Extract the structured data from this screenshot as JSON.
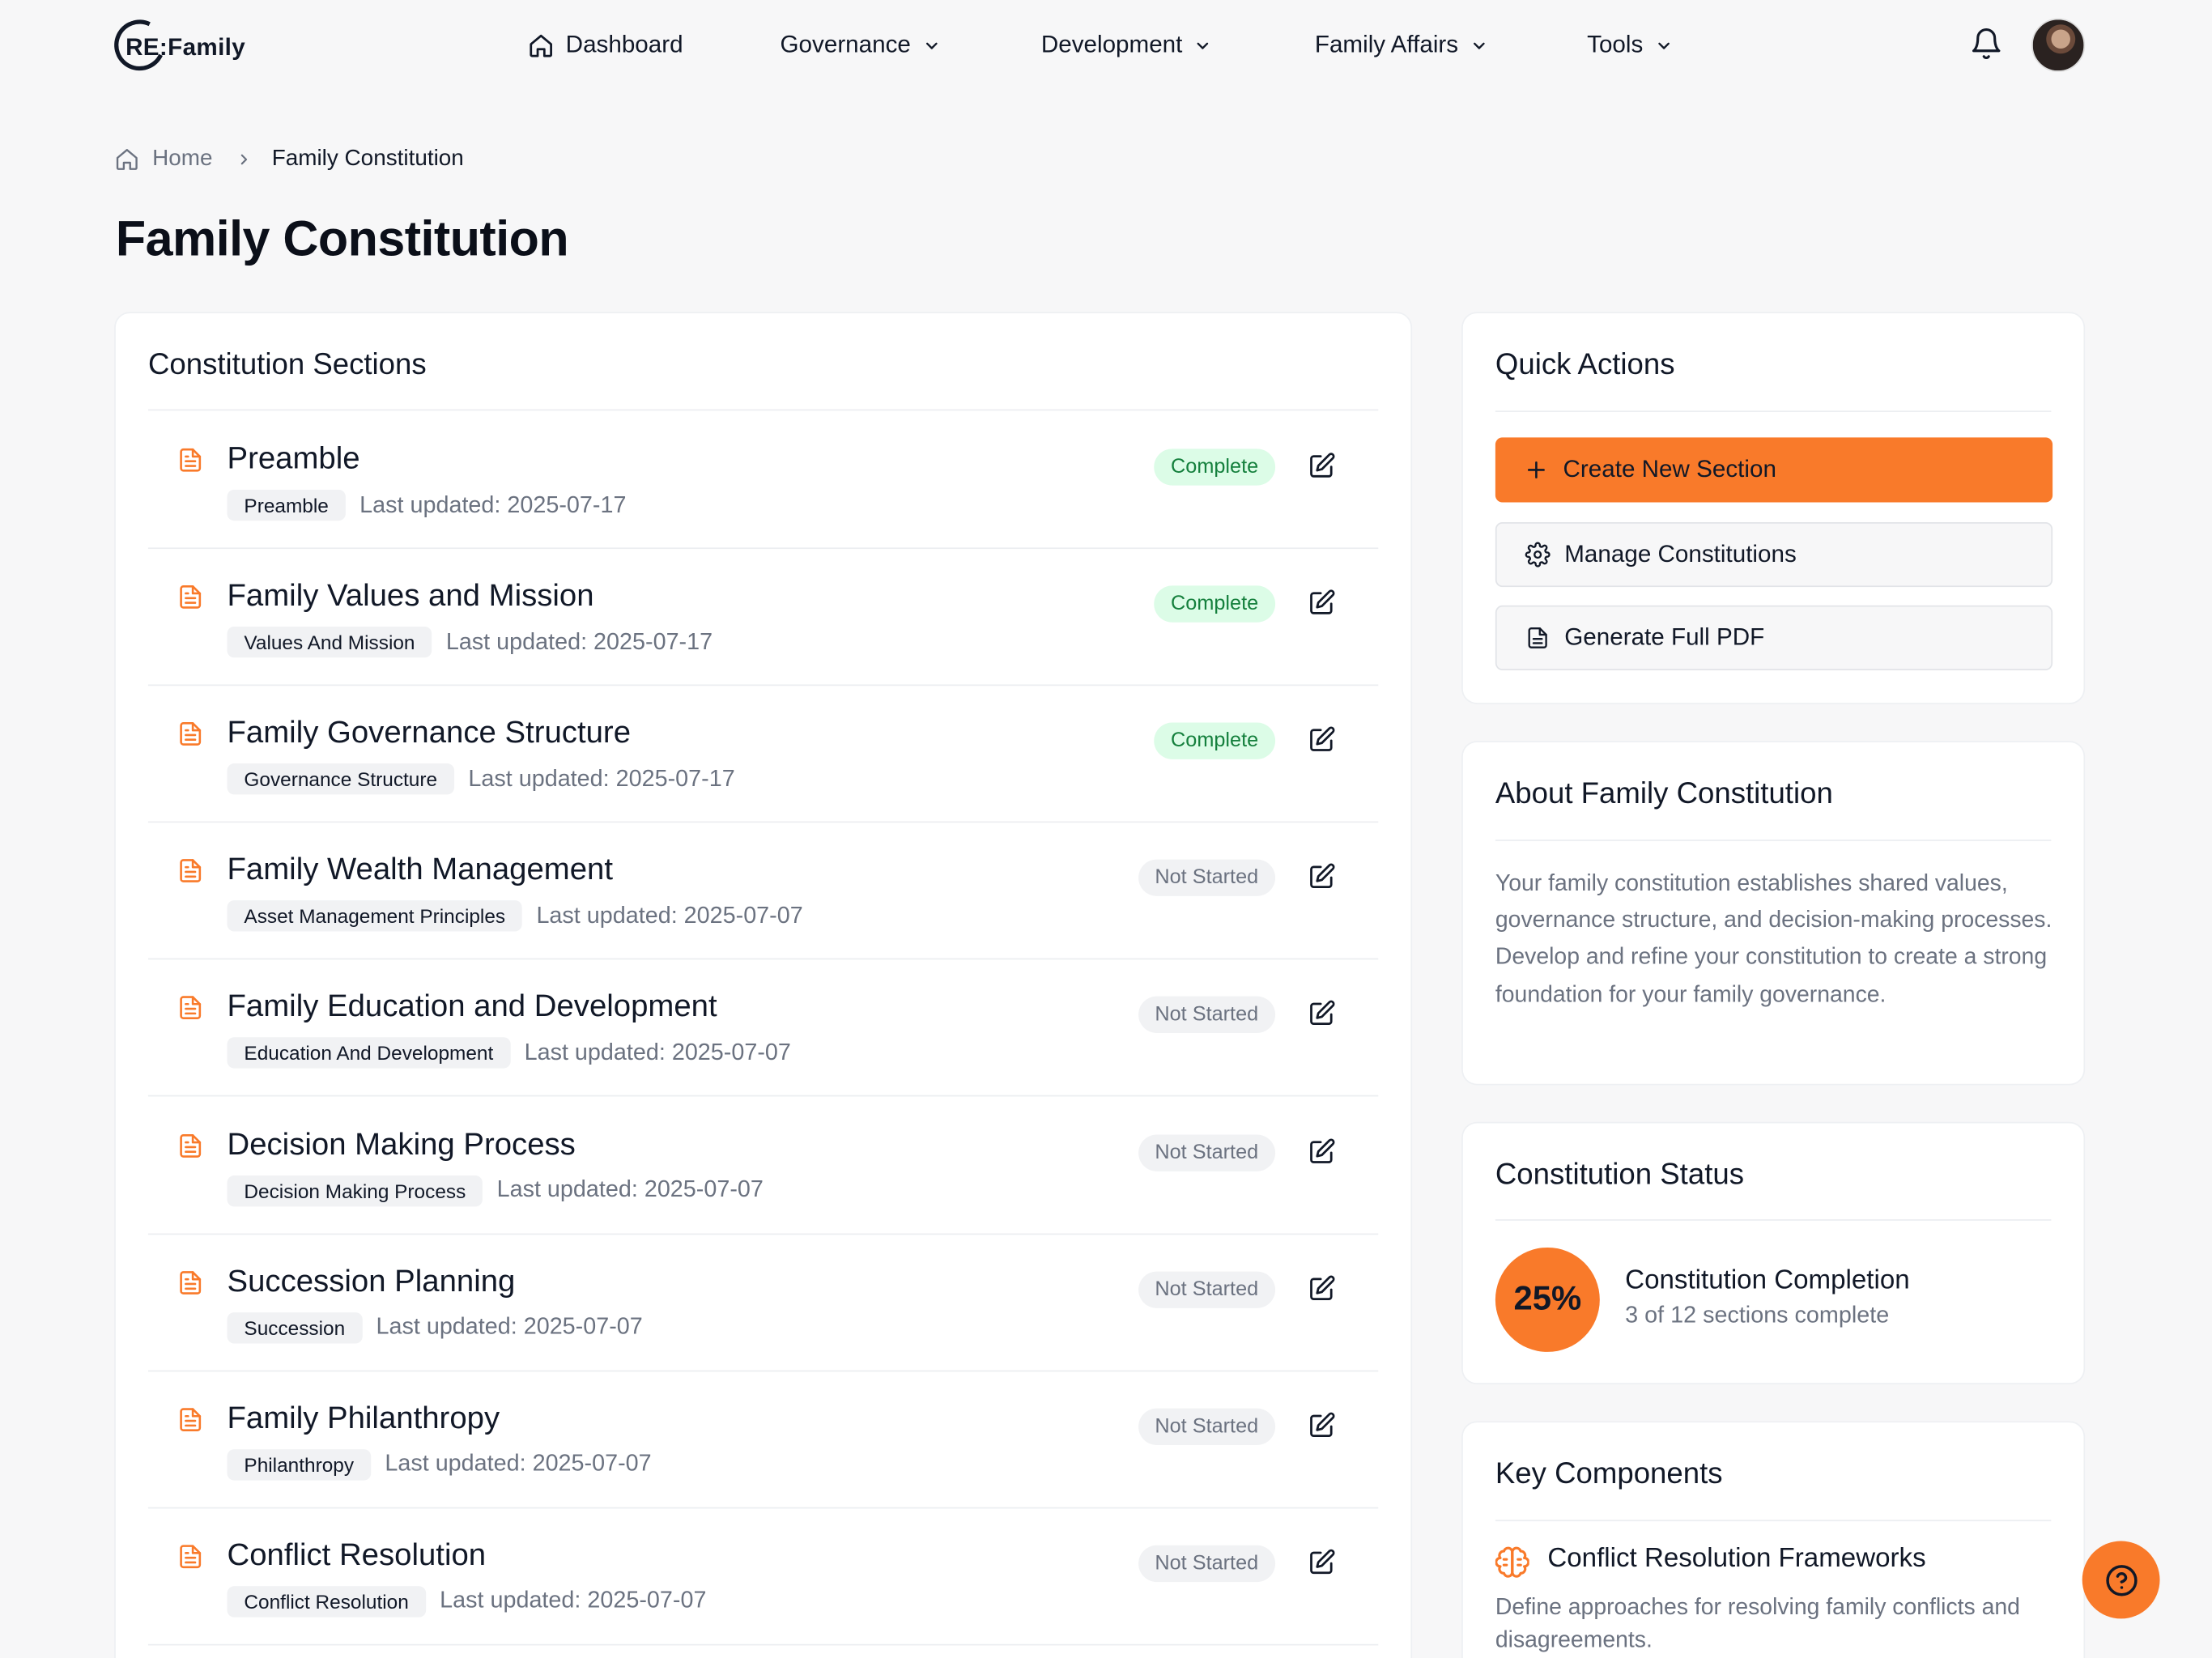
{
  "colors": {
    "accent": "#f97a2a",
    "complete_bg": "#dcfce7",
    "complete_text": "#15803d",
    "muted": "#6b7280"
  },
  "nav": {
    "logo_text": "RE:Family",
    "items": [
      {
        "label": "Dashboard",
        "icon": "home-icon"
      },
      {
        "label": "Governance",
        "icon": "chevron-down-icon"
      },
      {
        "label": "Development",
        "icon": "chevron-down-icon"
      },
      {
        "label": "Family Affairs",
        "icon": "chevron-down-icon"
      },
      {
        "label": "Tools",
        "icon": "chevron-down-icon"
      }
    ]
  },
  "breadcrumb": {
    "home": "Home",
    "current": "Family Constitution"
  },
  "page_title": "Family Constitution",
  "sections_card": {
    "title": "Constitution Sections",
    "sections": [
      {
        "title": "Preamble",
        "tag": "Preamble",
        "updated": "Last updated: 2025-07-17",
        "status": "Complete"
      },
      {
        "title": "Family Values and Mission",
        "tag": "Values And Mission",
        "updated": "Last updated: 2025-07-17",
        "status": "Complete"
      },
      {
        "title": "Family Governance Structure",
        "tag": "Governance Structure",
        "updated": "Last updated: 2025-07-17",
        "status": "Complete"
      },
      {
        "title": "Family Wealth Management",
        "tag": "Asset Management Principles",
        "updated": "Last updated: 2025-07-07",
        "status": "Not Started"
      },
      {
        "title": "Family Education and Development",
        "tag": "Education And Development",
        "updated": "Last updated: 2025-07-07",
        "status": "Not Started"
      },
      {
        "title": "Decision Making Process",
        "tag": "Decision Making Process",
        "updated": "Last updated: 2025-07-07",
        "status": "Not Started"
      },
      {
        "title": "Succession Planning",
        "tag": "Succession",
        "updated": "Last updated: 2025-07-07",
        "status": "Not Started"
      },
      {
        "title": "Family Philanthropy",
        "tag": "Philanthropy",
        "updated": "Last updated: 2025-07-07",
        "status": "Not Started"
      },
      {
        "title": "Conflict Resolution",
        "tag": "Conflict Resolution",
        "updated": "Last updated: 2025-07-07",
        "status": "Not Started"
      }
    ]
  },
  "quick_actions": {
    "title": "Quick Actions",
    "create_label": "Create New Section",
    "manage_label": "Manage Constitutions",
    "pdf_label": "Generate Full PDF"
  },
  "about": {
    "title": "About Family Constitution",
    "text": "Your family constitution establishes shared values, governance structure, and decision-making processes. Develop and refine your constitution to create a strong foundation for your family governance."
  },
  "status": {
    "title": "Constitution Status",
    "percent": "25%",
    "completion_label": "Constitution Completion",
    "sections_complete": "3 of 12 sections complete"
  },
  "key_components": {
    "title": "Key Components",
    "items": [
      {
        "title": "Conflict Resolution Frameworks",
        "desc": "Define approaches for resolving family conflicts and disagreements.",
        "icon": "brain-icon"
      }
    ]
  }
}
